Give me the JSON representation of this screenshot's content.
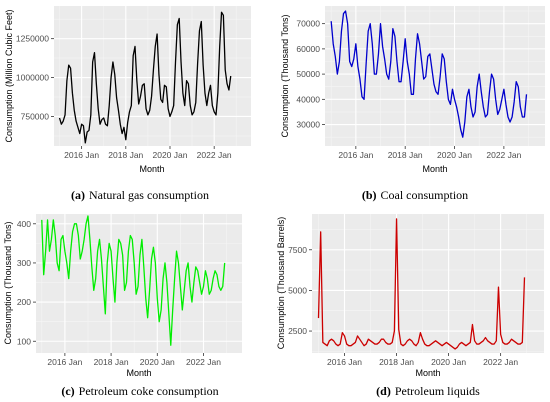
{
  "chart_data": [
    {
      "type": "line",
      "caption_letter": "(a)",
      "caption_text": "Natural gas consumption",
      "xlabel": "Month",
      "ylabel": "Consumption (Million Cubic Feet)",
      "color": "#000000",
      "xlim": [
        "2014-10",
        "2023-09"
      ],
      "ylim": [
        560000,
        1460000
      ],
      "x_ticks": [
        "2016 Jan",
        "2018 Jan",
        "2020 Jan",
        "2022 Jan"
      ],
      "y_ticks": [
        {
          "value": 750000,
          "label": "750000"
        },
        {
          "value": 1000000,
          "label": "1000000"
        },
        {
          "value": 1250000,
          "label": "1250000"
        }
      ],
      "grid": true,
      "series": [
        {
          "start": "2015-01",
          "values": [
            740000,
            700000,
            720000,
            760000,
            980000,
            1080000,
            1060000,
            900000,
            790000,
            720000,
            680000,
            640000,
            700000,
            690000,
            580000,
            650000,
            660000,
            760000,
            1100000,
            1160000,
            960000,
            800000,
            700000,
            730000,
            740000,
            700000,
            690000,
            820000,
            1000000,
            1100000,
            1020000,
            870000,
            790000,
            700000,
            640000,
            680000,
            600000,
            710000,
            780000,
            820000,
            1140000,
            1200000,
            980000,
            830000,
            880000,
            950000,
            960000,
            800000,
            760000,
            790000,
            880000,
            1050000,
            1200000,
            1280000,
            1020000,
            860000,
            840000,
            950000,
            940000,
            800000,
            750000,
            780000,
            820000,
            1100000,
            1340000,
            1380000,
            1100000,
            900000,
            820000,
            980000,
            960000,
            820000,
            760000,
            780000,
            840000,
            1090000,
            1300000,
            1360000,
            1080000,
            900000,
            820000,
            900000,
            950000,
            820000,
            780000,
            760000,
            900000,
            1200000,
            1420000,
            1400000,
            1050000,
            960000,
            920000,
            1010000
          ]
        }
      ]
    },
    {
      "type": "line",
      "caption_letter": "(b)",
      "caption_text": "Coal consumption",
      "xlabel": "Month",
      "ylabel": "Consumption (Thousand Tons)",
      "color": "#0000cc",
      "xlim": [
        "2014-10",
        "2023-09"
      ],
      "ylim": [
        21500,
        77000
      ],
      "x_ticks": [
        "2016 Jan",
        "2018 Jan",
        "2020 Jan",
        "2022 Jan"
      ],
      "y_ticks": [
        {
          "value": 30000,
          "label": "30000"
        },
        {
          "value": 40000,
          "label": "40000"
        },
        {
          "value": 50000,
          "label": "50000"
        },
        {
          "value": 60000,
          "label": "60000"
        },
        {
          "value": 70000,
          "label": "70000"
        }
      ],
      "grid": true,
      "series": [
        {
          "start": "2015-01",
          "values": [
            71000,
            62000,
            57000,
            50000,
            55000,
            67000,
            74000,
            75000,
            70000,
            55000,
            53000,
            56000,
            62000,
            53000,
            48000,
            41000,
            40000,
            54000,
            67000,
            70000,
            62000,
            50000,
            50000,
            58000,
            70000,
            61000,
            56000,
            50000,
            48000,
            55000,
            68000,
            65000,
            55000,
            47000,
            47000,
            55000,
            64000,
            55000,
            50000,
            42000,
            42000,
            56000,
            66000,
            62000,
            55000,
            48000,
            49000,
            57000,
            58000,
            52000,
            46000,
            43000,
            42000,
            49000,
            58000,
            56000,
            47000,
            40000,
            38000,
            44000,
            40000,
            37000,
            33000,
            28000,
            25000,
            31000,
            41000,
            44000,
            37000,
            33000,
            35000,
            45000,
            50000,
            43000,
            37000,
            33000,
            34000,
            43000,
            50000,
            48000,
            40000,
            34000,
            36000,
            40000,
            44000,
            38000,
            33000,
            31000,
            33000,
            39000,
            47000,
            45000,
            37000,
            33000,
            33000,
            42000
          ]
        }
      ]
    },
    {
      "type": "line",
      "caption_letter": "(c)",
      "caption_text": "Petroleum coke consumption",
      "xlabel": "Month",
      "ylabel": "Consumption (Thousand Tons)",
      "color": "#00ee00",
      "xlim": [
        "2014-10",
        "2023-09"
      ],
      "ylim": [
        70,
        425
      ],
      "x_ticks": [
        "2016 Jan",
        "2018 Jan",
        "2020 Jan",
        "2022 Jan"
      ],
      "y_ticks": [
        {
          "value": 100,
          "label": "100"
        },
        {
          "value": 200,
          "label": "200"
        },
        {
          "value": 300,
          "label": "300"
        },
        {
          "value": 400,
          "label": "400"
        }
      ],
      "grid": true,
      "series": [
        {
          "start": "2015-01",
          "values": [
            410,
            270,
            330,
            410,
            330,
            360,
            410,
            370,
            300,
            280,
            360,
            370,
            330,
            300,
            260,
            330,
            380,
            400,
            400,
            370,
            310,
            330,
            360,
            400,
            420,
            360,
            290,
            230,
            260,
            330,
            360,
            310,
            240,
            170,
            300,
            350,
            330,
            260,
            200,
            300,
            360,
            350,
            320,
            230,
            250,
            330,
            370,
            360,
            300,
            220,
            240,
            320,
            360,
            290,
            210,
            160,
            230,
            310,
            340,
            300,
            210,
            150,
            180,
            260,
            300,
            250,
            170,
            90,
            180,
            260,
            330,
            300,
            240,
            180,
            230,
            280,
            300,
            240,
            200,
            250,
            290,
            280,
            250,
            220,
            240,
            280,
            260,
            220,
            230,
            260,
            280,
            270,
            240,
            230,
            240,
            300
          ]
        }
      ]
    },
    {
      "type": "line",
      "caption_letter": "(d)",
      "caption_text": "Petroleum liquids",
      "xlabel": "Month",
      "ylabel": "Consumption (Thousand Barrels)",
      "color": "#cc0000",
      "xlim": [
        "2014-10",
        "2023-09"
      ],
      "ylim": [
        1150,
        9700
      ],
      "x_ticks": [
        "2016 Jan",
        "2018 Jan",
        "2020 Jan",
        "2022 Jan"
      ],
      "y_ticks": [
        {
          "value": 2500,
          "label": "2500"
        },
        {
          "value": 5000,
          "label": "5000"
        },
        {
          "value": 7500,
          "label": "7500"
        }
      ],
      "grid": true,
      "series": [
        {
          "start": "2015-01",
          "values": [
            3300,
            8600,
            1800,
            1700,
            1600,
            1900,
            2000,
            1900,
            1700,
            1600,
            1700,
            2400,
            2200,
            1700,
            1600,
            1600,
            1700,
            1800,
            2200,
            2000,
            1800,
            1600,
            1700,
            2000,
            1900,
            1800,
            1700,
            1700,
            1800,
            2000,
            2000,
            1800,
            1700,
            1700,
            1800,
            2500,
            9400,
            2600,
            1700,
            1600,
            1700,
            1900,
            2000,
            1900,
            1700,
            1600,
            1800,
            2400,
            2000,
            1700,
            1600,
            1600,
            1700,
            1800,
            1900,
            1800,
            1700,
            1600,
            1700,
            1800,
            1700,
            1600,
            1500,
            1400,
            1500,
            1700,
            1800,
            1700,
            1600,
            1700,
            1800,
            2900,
            1900,
            1700,
            1700,
            1800,
            1900,
            2100,
            1900,
            1800,
            1700,
            1700,
            1900,
            5200,
            2300,
            1800,
            1700,
            1700,
            1800,
            2000,
            1900,
            1800,
            1700,
            1700,
            1800,
            5800
          ]
        }
      ]
    }
  ]
}
